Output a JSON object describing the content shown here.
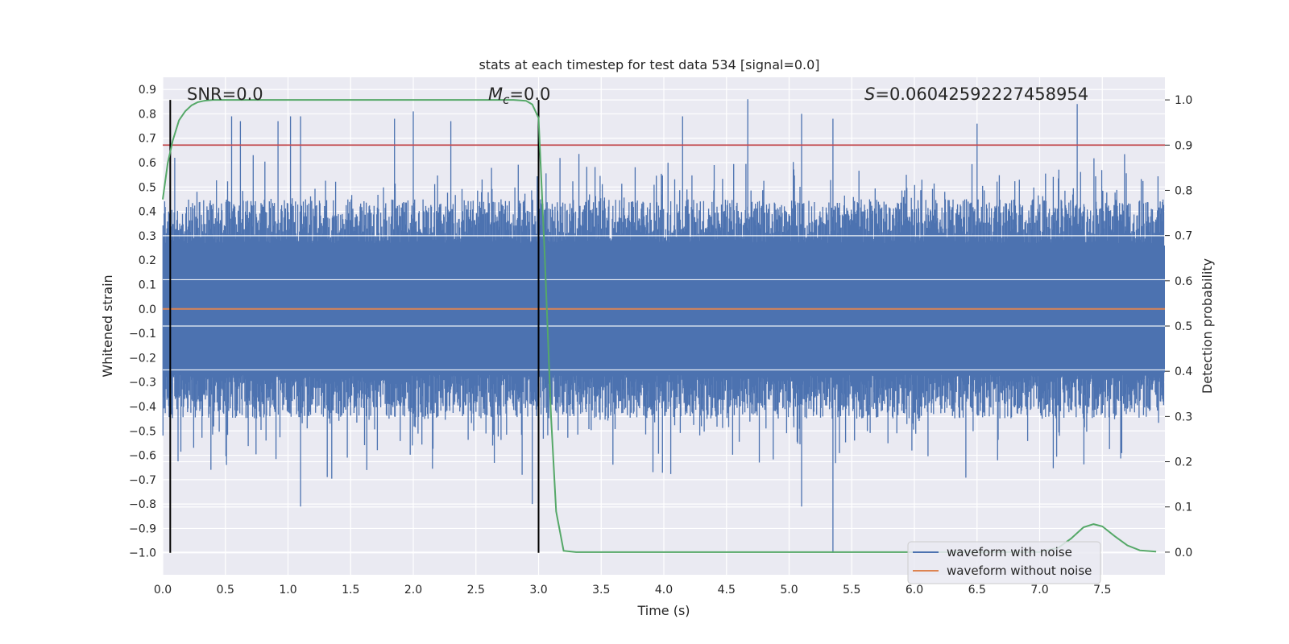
{
  "chart_data": {
    "type": "line",
    "title": "stats at each timestep for test data 534 [signal=0.0]",
    "xlabel": "Time (s)",
    "ylabel": "Whitened strain",
    "y2label": "Detection probability",
    "xlim": [
      0.0,
      8.0
    ],
    "ylim": [
      -1.09,
      0.95
    ],
    "y2lim": [
      -0.05,
      1.05
    ],
    "xticks": [
      "0.0",
      "0.5",
      "1.0",
      "1.5",
      "2.0",
      "2.5",
      "3.0",
      "3.5",
      "4.0",
      "4.5",
      "5.0",
      "5.5",
      "6.0",
      "6.5",
      "7.0",
      "7.5"
    ],
    "yticks": [
      "0.9",
      "0.8",
      "0.7",
      "0.6",
      "0.5",
      "0.4",
      "0.3",
      "0.2",
      "0.1",
      "0.0",
      "−0.1",
      "−0.2",
      "−0.3",
      "−0.4",
      "−0.5",
      "−0.6",
      "−0.7",
      "−0.8",
      "−0.9",
      "−1.0"
    ],
    "y2ticks": [
      "1.0",
      "0.9",
      "0.8",
      "0.7",
      "0.6",
      "0.5",
      "0.4",
      "0.3",
      "0.2",
      "0.1",
      "0.0"
    ],
    "grid": true,
    "legend_position": "lower-right",
    "annotations": {
      "snr": "SNR=0.0",
      "mc_symbol": "M",
      "mc_sub": "c",
      "mc_value": "=0.0",
      "s_symbol": "S",
      "s_value": "=0.06042592227458954"
    },
    "threshold": 0.9,
    "vlines": [
      0.06,
      3.0
    ],
    "series": [
      {
        "name": "waveform with noise",
        "color": "#4c72b0",
        "axis": "left",
        "noise_envelope": [
          -1.0,
          0.86
        ],
        "peaks": [
          {
            "x": 0.55,
            "y": 0.79
          },
          {
            "x": 0.62,
            "y": 0.77
          },
          {
            "x": 0.92,
            "y": 0.77
          },
          {
            "x": 1.02,
            "y": 0.79
          },
          {
            "x": 1.1,
            "y": 0.79
          },
          {
            "x": 1.85,
            "y": 0.78
          },
          {
            "x": 2.0,
            "y": 0.81
          },
          {
            "x": 2.3,
            "y": 0.77
          },
          {
            "x": 4.15,
            "y": 0.79
          },
          {
            "x": 4.67,
            "y": 0.86
          },
          {
            "x": 5.1,
            "y": 0.8
          },
          {
            "x": 5.35,
            "y": 0.78
          },
          {
            "x": 6.5,
            "y": 0.76
          },
          {
            "x": 7.3,
            "y": 0.84
          },
          {
            "x": 1.1,
            "y": -0.81
          },
          {
            "x": 2.95,
            "y": -0.8
          },
          {
            "x": 5.1,
            "y": -0.81
          },
          {
            "x": 5.35,
            "y": -1.0
          }
        ]
      },
      {
        "name": "waveform without noise",
        "color": "#dd8452",
        "axis": "left",
        "x": [
          0.0,
          8.0
        ],
        "values": [
          0.0,
          0.0
        ]
      },
      {
        "name": "detection probability",
        "color": "#55a868",
        "axis": "right",
        "x": [
          0.0,
          0.04,
          0.08,
          0.13,
          0.18,
          0.23,
          0.28,
          0.33,
          0.4,
          0.5,
          1.0,
          2.0,
          2.8,
          2.9,
          2.95,
          3.0,
          3.05,
          3.1,
          3.14,
          3.2,
          3.3,
          4.0,
          5.0,
          6.0,
          7.0,
          7.15,
          7.25,
          7.35,
          7.43,
          7.5,
          7.6,
          7.7,
          7.8,
          7.93
        ],
        "values": [
          0.78,
          0.86,
          0.91,
          0.955,
          0.975,
          0.988,
          0.995,
          0.998,
          1.0,
          1.0,
          1.0,
          1.0,
          1.0,
          0.998,
          0.99,
          0.96,
          0.65,
          0.3,
          0.09,
          0.003,
          0.0,
          0.0,
          0.0,
          0.0,
          0.0,
          0.01,
          0.03,
          0.055,
          0.062,
          0.057,
          0.035,
          0.015,
          0.004,
          0.001
        ]
      }
    ]
  }
}
